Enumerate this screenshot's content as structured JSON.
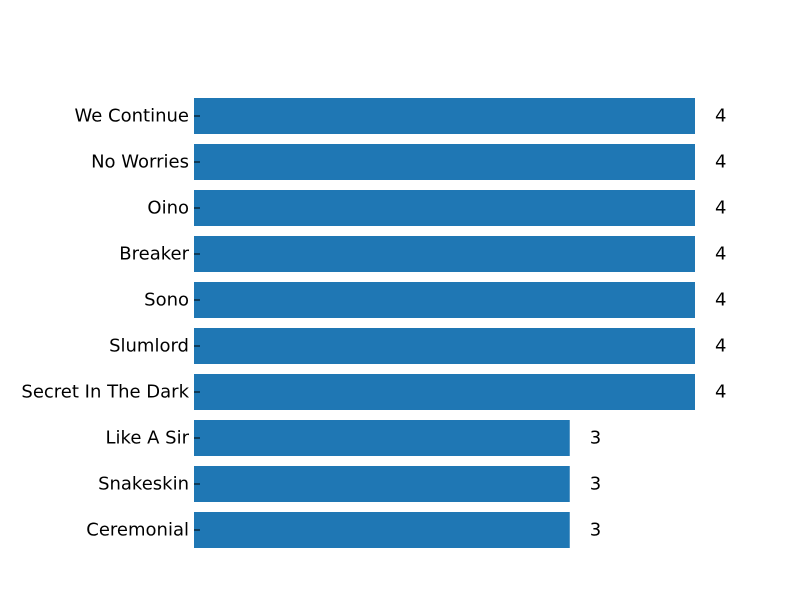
{
  "chart_data": {
    "type": "bar",
    "orientation": "horizontal",
    "categories": [
      "We Continue",
      "No Worries",
      "Oino",
      "Breaker",
      "Sono",
      "Slumlord",
      "Secret In The Dark",
      "Like A Sir",
      "Snakeskin",
      "Ceremonial"
    ],
    "values": [
      4,
      4,
      4,
      4,
      4,
      4,
      4,
      3,
      3,
      3
    ],
    "value_labels": [
      "4",
      "4",
      "4",
      "4",
      "4",
      "4",
      "4",
      "3",
      "3",
      "3"
    ],
    "xlim": [
      0,
      4
    ],
    "bar_color": "#1f77b4",
    "grid": false,
    "legend": "none"
  }
}
